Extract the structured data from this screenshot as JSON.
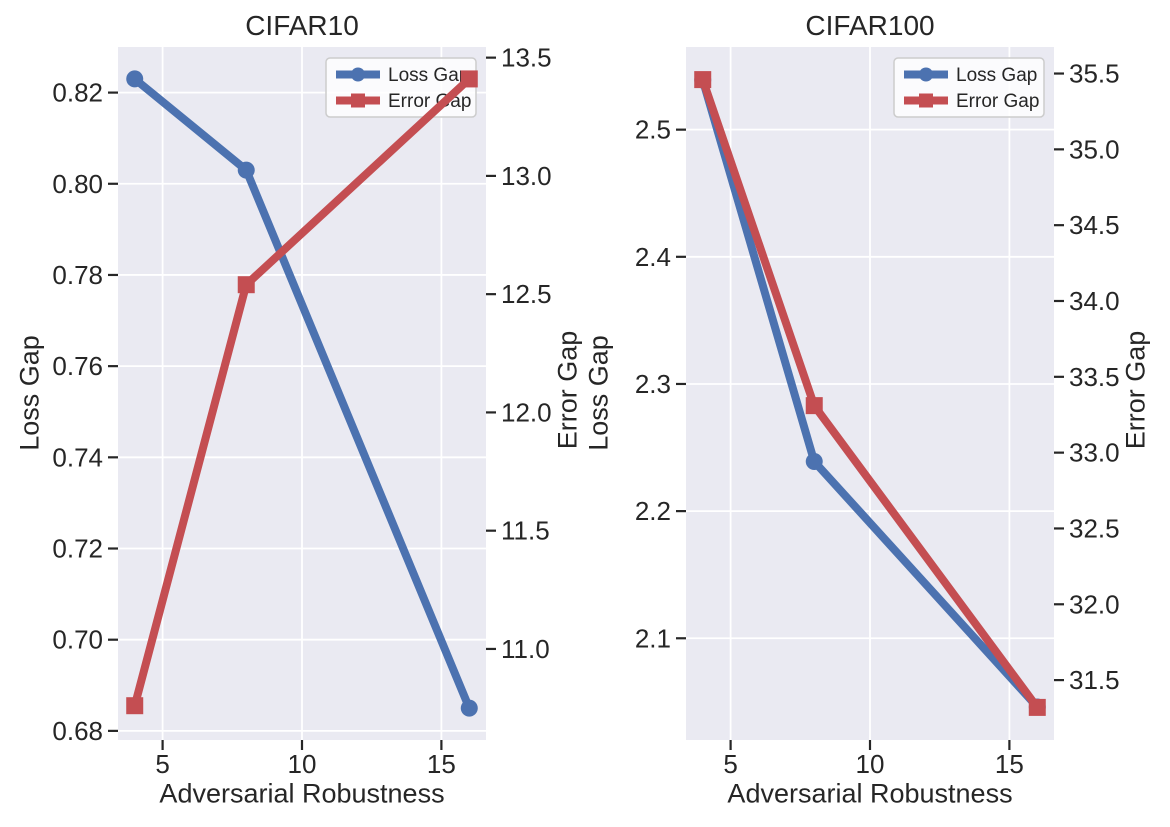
{
  "style": {
    "figure_background": "#FFFFFF",
    "axes_background": "#EAEAF2",
    "grid_color": "#FFFFFF",
    "text_color": "#262626",
    "tick_color": "#262626",
    "legend_border": "#CCCCCC",
    "legend_background": "rgba(255,255,255,0.8)",
    "loss_gap_color": "#4C72B0",
    "error_gap_color": "#C44E52"
  },
  "chart_data": [
    {
      "type": "line",
      "title": "CIFAR10",
      "xlabel": "Adversarial Robustness",
      "ylabel_left": "Loss Gap",
      "ylabel_right": "Error Gap",
      "x": [
        4,
        8,
        16
      ],
      "series": [
        {
          "name": "Loss Gap",
          "axis": "left",
          "color": "#4C72B0",
          "marker": "circle",
          "values": [
            0.823,
            0.803,
            0.685
          ]
        },
        {
          "name": "Error Gap",
          "axis": "right",
          "color": "#C44E52",
          "marker": "square",
          "values": [
            10.76,
            12.54,
            13.41
          ]
        }
      ],
      "xlim": [
        3.4,
        16.6
      ],
      "ylim_left": [
        0.678,
        0.83
      ],
      "ylim_right": [
        10.615,
        13.545
      ],
      "xticks": {
        "values": [
          5,
          10,
          15
        ],
        "labels": [
          "5",
          "10",
          "15"
        ]
      },
      "yticks_left": {
        "values": [
          0.68,
          0.7,
          0.72,
          0.74,
          0.76,
          0.78,
          0.8,
          0.82
        ],
        "labels": [
          "0.68",
          "0.70",
          "0.72",
          "0.74",
          "0.76",
          "0.78",
          "0.80",
          "0.82"
        ]
      },
      "yticks_right": {
        "values": [
          11.0,
          11.5,
          12.0,
          12.5,
          13.0,
          13.5
        ],
        "labels": [
          "11.0",
          "11.5",
          "12.0",
          "12.5",
          "13.0",
          "13.5"
        ]
      },
      "legend": {
        "position": "upper right",
        "entries": [
          "Loss Gap",
          "Error Gap"
        ]
      },
      "grid": true
    },
    {
      "type": "line",
      "title": "CIFAR100",
      "xlabel": "Adversarial Robustness",
      "ylabel_left": "Loss Gap",
      "ylabel_right": "Error Gap",
      "x": [
        4,
        8,
        16
      ],
      "series": [
        {
          "name": "Loss Gap",
          "axis": "left",
          "color": "#4C72B0",
          "marker": "circle",
          "values": [
            2.539,
            2.239,
            2.046
          ]
        },
        {
          "name": "Error Gap",
          "axis": "right",
          "color": "#C44E52",
          "marker": "square",
          "values": [
            35.46,
            33.31,
            31.32
          ]
        }
      ],
      "xlim": [
        3.4,
        16.6
      ],
      "ylim_left": [
        2.02,
        2.565
      ],
      "ylim_right": [
        31.105,
        35.675
      ],
      "xticks": {
        "values": [
          5,
          10,
          15
        ],
        "labels": [
          "5",
          "10",
          "15"
        ]
      },
      "yticks_left": {
        "values": [
          2.1,
          2.2,
          2.3,
          2.4,
          2.5
        ],
        "labels": [
          "2.1",
          "2.2",
          "2.3",
          "2.4",
          "2.5"
        ]
      },
      "yticks_right": {
        "values": [
          31.5,
          32.0,
          32.5,
          33.0,
          33.5,
          34.0,
          34.5,
          35.0,
          35.5
        ],
        "labels": [
          "31.5",
          "32.0",
          "32.5",
          "33.0",
          "33.5",
          "34.0",
          "34.5",
          "35.0",
          "35.5"
        ]
      },
      "legend": {
        "position": "upper right",
        "entries": [
          "Loss Gap",
          "Error Gap"
        ]
      },
      "grid": true
    }
  ]
}
